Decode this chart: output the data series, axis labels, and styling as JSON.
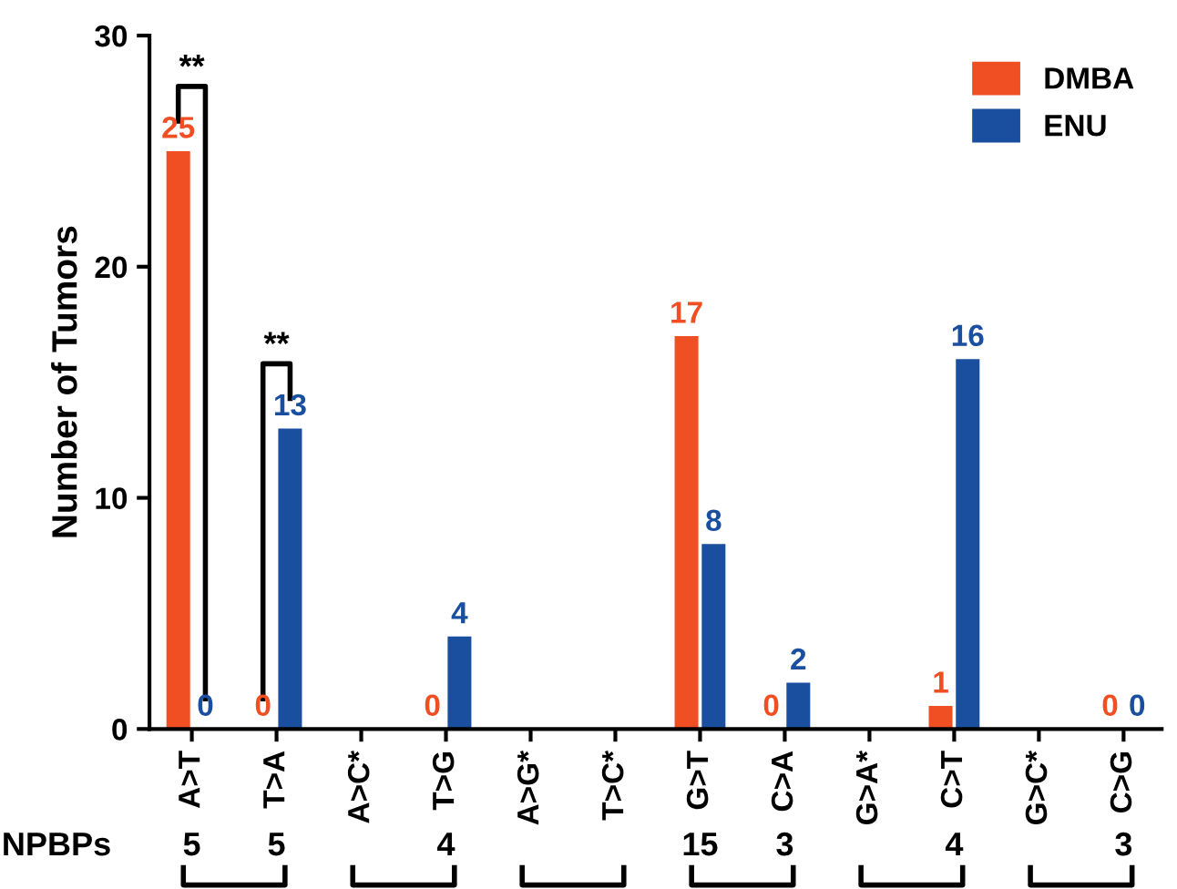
{
  "chart_data": {
    "type": "bar",
    "ylabel": "Number of Tumors",
    "categories": [
      "A>T",
      "T>A",
      "A>C*",
      "T>G",
      "A>G*",
      "T>C*",
      "G>T",
      "C>A",
      "G>A*",
      "C>T",
      "G>C*",
      "C>G"
    ],
    "series": [
      {
        "name": "DMBA",
        "color": "#f04e23",
        "values": [
          25,
          0,
          null,
          0,
          null,
          null,
          17,
          0,
          null,
          1,
          null,
          0
        ]
      },
      {
        "name": "ENU",
        "color": "#1a4fa0",
        "values": [
          0,
          13,
          null,
          4,
          null,
          null,
          8,
          2,
          null,
          16,
          null,
          0
        ]
      }
    ],
    "ylim": [
      0,
      30
    ],
    "yticks": [
      0,
      10,
      20,
      30
    ],
    "data_labels": true,
    "legend": "top right",
    "grid": false,
    "annotations": [
      "**",
      "**",
      "NPBPs",
      "5",
      "5",
      "4",
      "15",
      "3",
      "4",
      "3"
    ]
  }
}
